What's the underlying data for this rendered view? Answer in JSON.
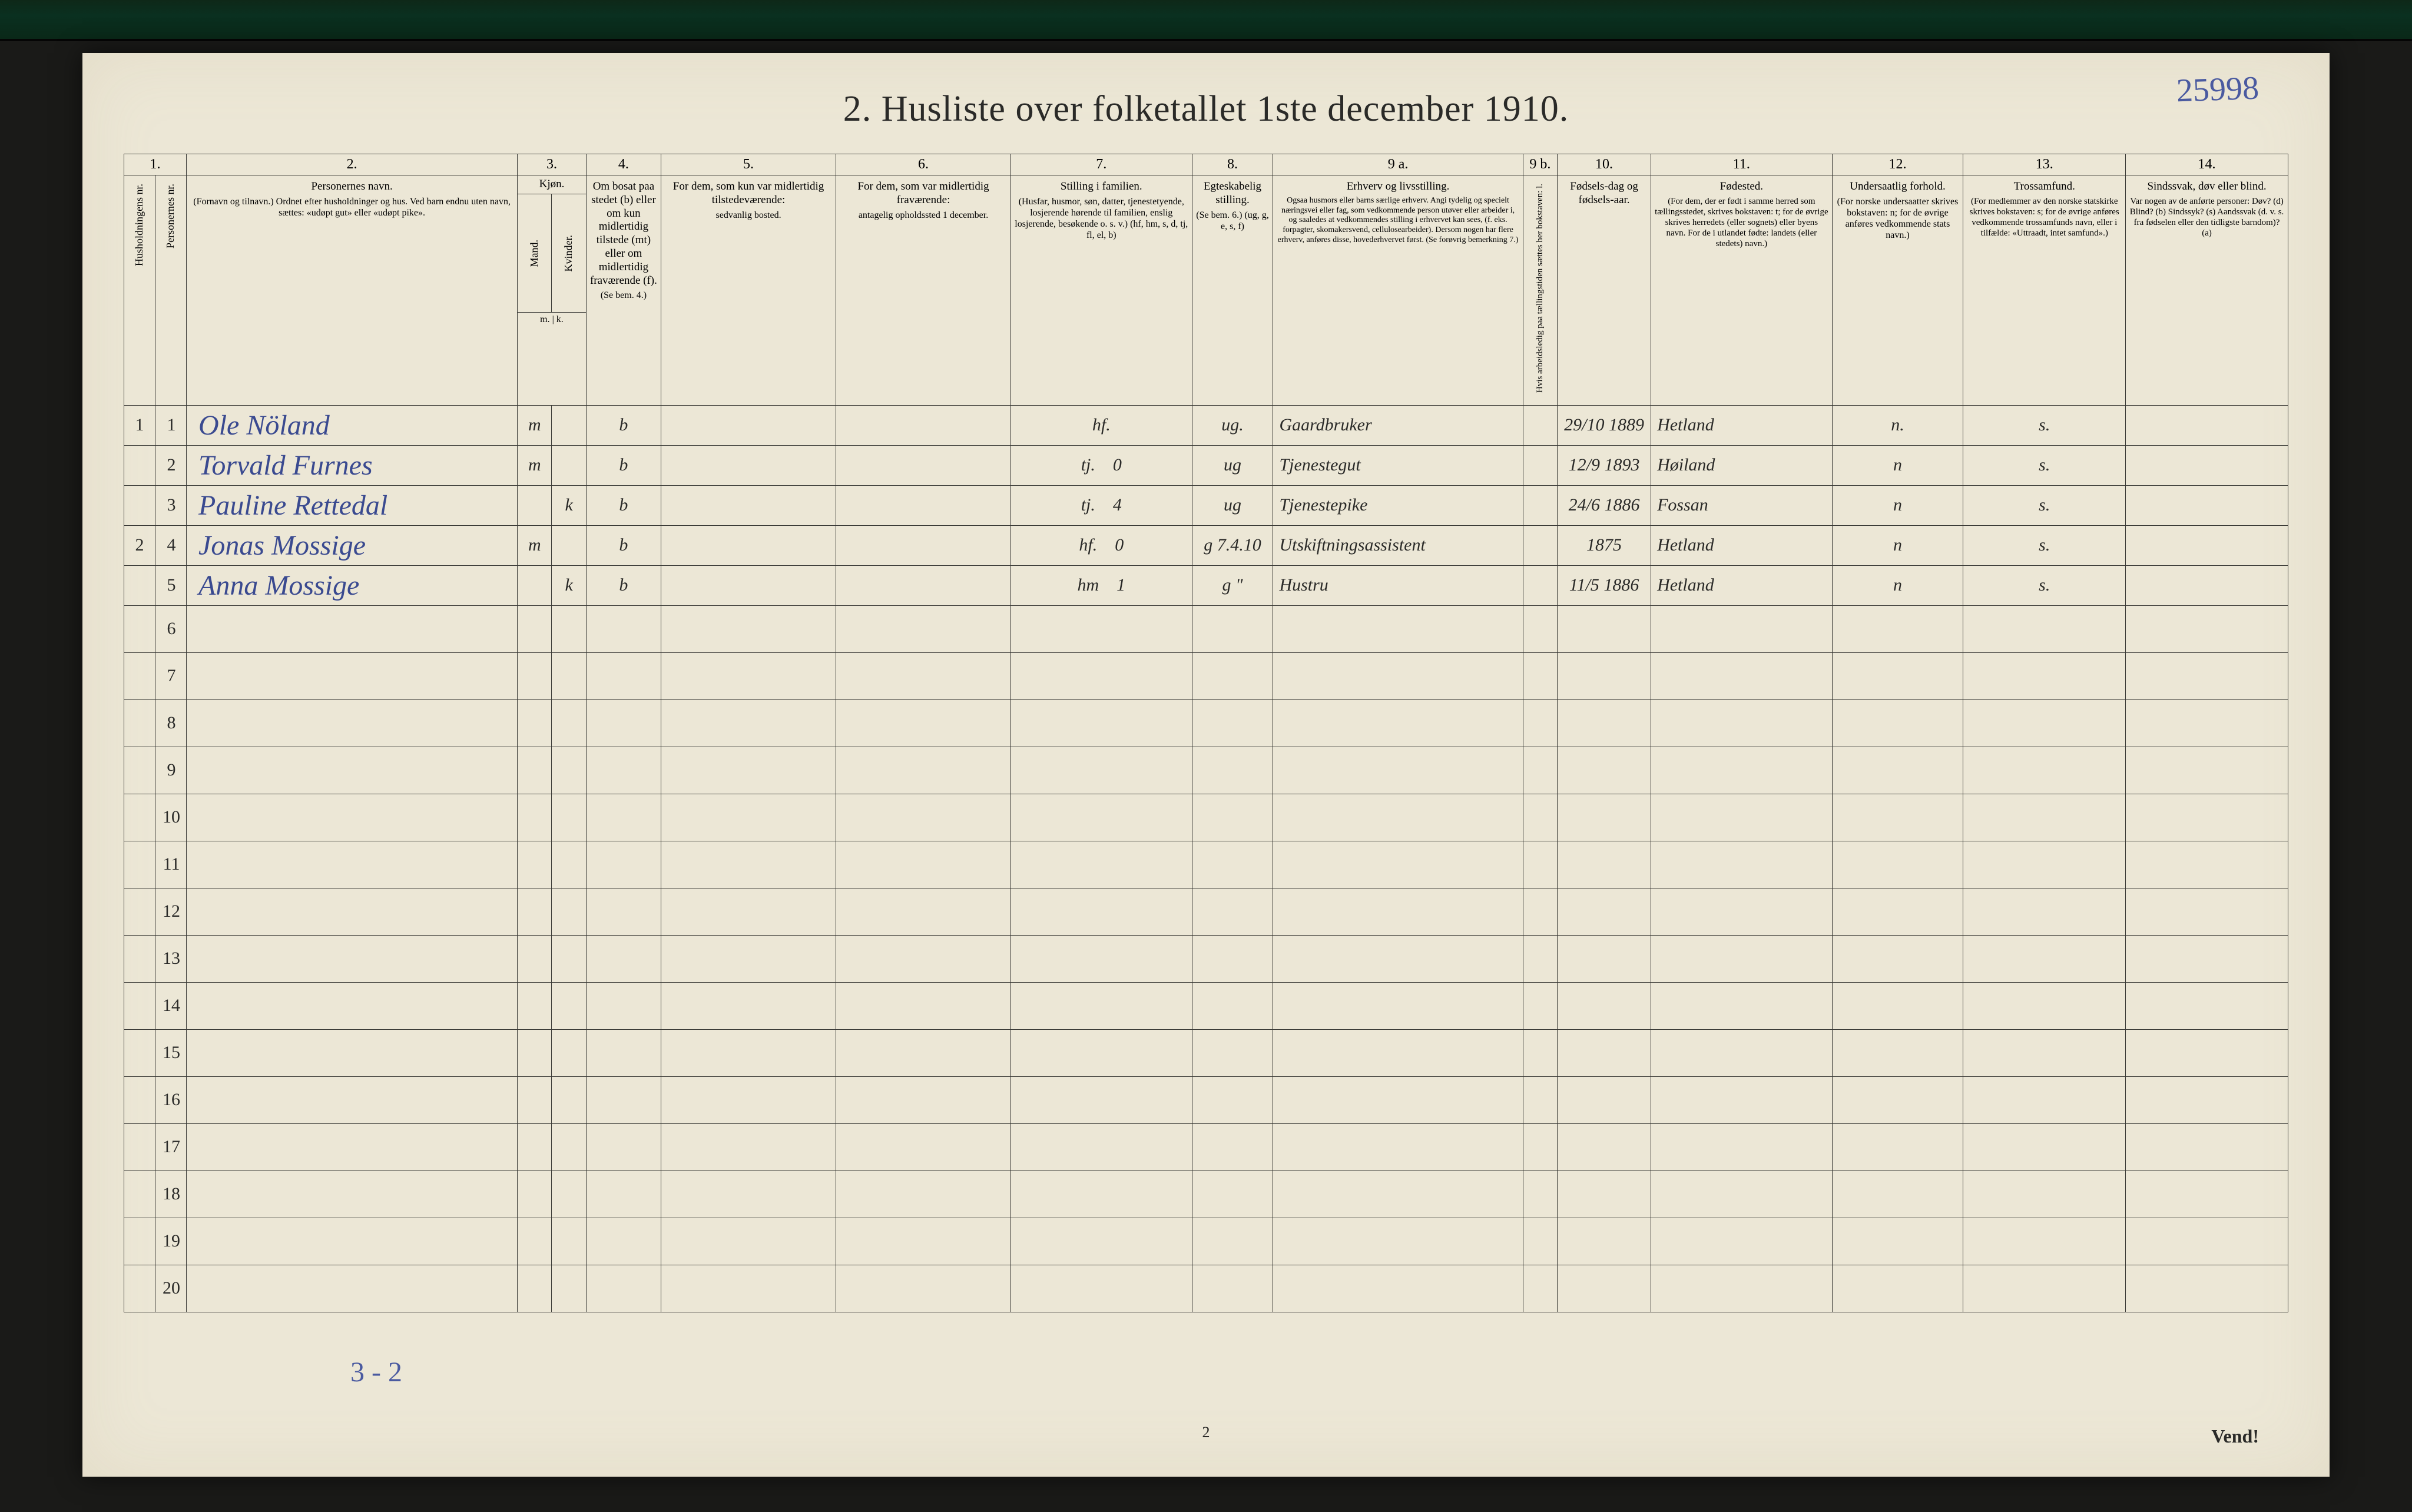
{
  "corner_note": "25998",
  "title": "2.  Husliste over folketallet 1ste december 1910.",
  "columns": {
    "nums": [
      "1.",
      "2.",
      "3.",
      "4.",
      "5.",
      "6.",
      "7.",
      "8.",
      "9 a.",
      "9 b.",
      "10.",
      "11.",
      "12.",
      "13.",
      "14."
    ],
    "h1a": "Husholdningens nr.",
    "h1b": "Personernes nr.",
    "h2": "Personernes navn.",
    "h2_sub": "(Fornavn og tilnavn.)\nOrdnet efter husholdninger og hus.\nVed barn endnu uten navn, sættes: «udøpt gut» eller «udøpt pike».",
    "h3": "Kjøn.",
    "h3a": "Mand.",
    "h3b": "Kvinder.",
    "h3_sub": "m. | k.",
    "h4": "Om bosat paa stedet (b) eller om kun midlertidig tilstede (mt) eller om midlertidig fraværende (f).",
    "h4_sub": "(Se bem. 4.)",
    "h5": "For dem, som kun var midlertidig tilstedeværende:",
    "h5_sub": "sedvanlig bosted.",
    "h6": "For dem, som var midlertidig fraværende:",
    "h6_sub": "antagelig opholdssted 1 december.",
    "h7": "Stilling i familien.",
    "h7_sub": "(Husfar, husmor, søn, datter, tjenestetyende, losjerende hørende til familien, enslig losjerende, besøkende o. s. v.)\n(hf, hm, s, d, tj, fl, el, b)",
    "h8": "Egteskabelig stilling.",
    "h8_sub": "(Se bem. 6.)\n(ug, g, e, s, f)",
    "h9a": "Erhverv og livsstilling.",
    "h9a_sub": "Ogsaa husmors eller barns særlige erhverv. Angi tydelig og specielt næringsvei eller fag, som vedkommende person utøver eller arbeider i, og saaledes at vedkommendes stilling i erhvervet kan sees, (f. eks. forpagter, skomakersvend, cellulosearbeider). Dersom nogen har flere erhverv, anføres disse, hovederhvervet først.\n(Se forøvrig bemerkning 7.)",
    "h9b": "Hvis arbeidsledig paa tællingstiden sættes her bokstaven: l.",
    "h10": "Fødsels-dag og fødsels-aar.",
    "h11": "Fødested.",
    "h11_sub": "(For dem, der er født i samme herred som tællingsstedet, skrives bokstaven: t; for de øvrige skrives herredets (eller sognets) eller byens navn. For de i utlandet fødte: landets (eller stedets) navn.)",
    "h12": "Undersaatlig forhold.",
    "h12_sub": "(For norske undersaatter skrives bokstaven: n; for de øvrige anføres vedkommende stats navn.)",
    "h13": "Trossamfund.",
    "h13_sub": "(For medlemmer av den norske statskirke skrives bokstaven: s; for de øvrige anføres vedkommende trossamfunds navn, eller i tilfælde: «Uttraadt, intet samfund».)",
    "h14": "Sindssvak, døv eller blind.",
    "h14_sub": "Var nogen av de anførte personer:\nDøv? (d)\nBlind? (b)\nSindssyk? (s)\nAandssvak (d. v. s. fra fødselen eller den tidligste barndom)? (a)"
  },
  "rows": [
    {
      "hh": "1",
      "pn": "1",
      "name": "Ole Nöland",
      "sex": "m",
      "res": "b",
      "fam": "hf.",
      "mar": "ug.",
      "occ": "Gaardbruker",
      "dob": "29/10 1889",
      "birthplace": "Hetland",
      "nat": "n.",
      "rel": "s."
    },
    {
      "hh": "",
      "pn": "2",
      "name": "Torvald Furnes",
      "sex": "m",
      "res": "b",
      "fam": "tj.",
      "fam2": "0",
      "mar": "ug",
      "occ": "Tjenestegut",
      "dob": "12/9 1893",
      "birthplace": "Høiland",
      "nat": "n",
      "rel": "s."
    },
    {
      "hh": "",
      "pn": "3",
      "name": "Pauline Rettedal",
      "sex": "k",
      "res": "b",
      "fam": "tj.",
      "fam2": "4",
      "mar": "ug",
      "occ": "Tjenestepike",
      "dob": "24/6 1886",
      "birthplace": "Fossan",
      "nat": "n",
      "rel": "s."
    },
    {
      "hh": "2",
      "pn": "4",
      "name": "Jonas Mossige",
      "sex": "m",
      "res": "b",
      "fam": "hf.",
      "fam2": "0",
      "mar": "g 7.4.10",
      "occ": "Utskiftningsassistent",
      "dob": "1875",
      "birthplace": "Hetland",
      "nat": "n",
      "rel": "s."
    },
    {
      "hh": "",
      "pn": "5",
      "name": "Anna Mossige",
      "sex": "k",
      "res": "b",
      "fam": "hm",
      "fam2": "1",
      "mar": "g \"",
      "occ": "Hustru",
      "dob": "11/5 1886",
      "birthplace": "Hetland",
      "nat": "n",
      "rel": "s."
    }
  ],
  "empty_row_count": 15,
  "empty_row_start": 6,
  "footer_math": "3 - 2",
  "page_number": "2",
  "vend": "Vend!",
  "colors": {
    "paper": "#ece7d6",
    "ink": "#2a2a28",
    "handwriting": "#3a4a90",
    "border": "#3a3a36"
  }
}
